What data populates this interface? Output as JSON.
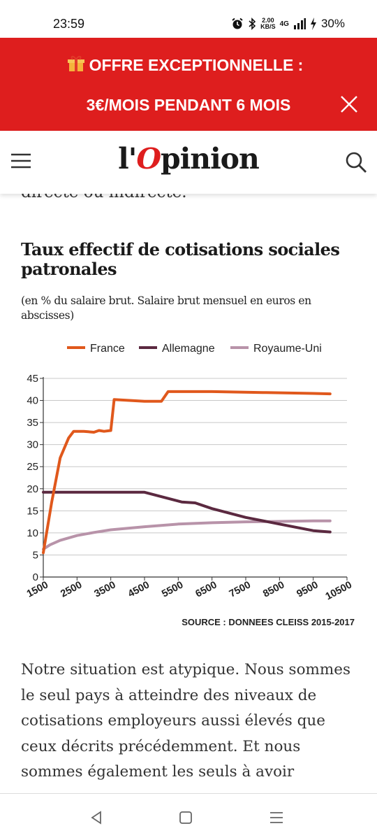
{
  "status_bar": {
    "time": "23:59",
    "network_speed_top": "2.00",
    "network_speed_bottom": "KB/S",
    "network_type": "4G",
    "battery": "30%"
  },
  "banner": {
    "gift_icon": "gift-icon",
    "line1": "OFFRE EXCEPTIONNELLE :",
    "line2": "3€/MOIS PENDANT 6 MOIS",
    "close_icon": "close-icon"
  },
  "header": {
    "logo_prefix": "l'",
    "logo_accent": "O",
    "logo_suffix": "pinion",
    "menu_icon": "hamburger-menu-icon",
    "search_icon": "search-icon"
  },
  "article": {
    "cut_text": "directe ou indirecte.",
    "paragraph": "Notre situation est atypique. Nous sommes le seul pays à atteindre des niveaux de cotisations employeurs aussi élevés que ceux décrits précédemment. Et nous sommes également les seuls à avoir"
  },
  "chart_data": {
    "type": "line",
    "title": "Taux effectif de cotisations sociales patronales",
    "subtitle": "(en % du salaire brut. Salaire brut mensuel en euros en abscisses)",
    "source": "SOURCE : DONNEES CLEISS 2015-2017",
    "xlim": [
      1500,
      10500
    ],
    "ylim": [
      0,
      45
    ],
    "x_ticks": [
      "1500",
      "2500",
      "3500",
      "4500",
      "5500",
      "6500",
      "7500",
      "8500",
      "9500",
      "10500"
    ],
    "y_ticks": [
      "0",
      "5",
      "10",
      "15",
      "20",
      "25",
      "30",
      "35",
      "40",
      "45"
    ],
    "grid": true,
    "legend_position": "top",
    "series": [
      {
        "name": "France",
        "color": "#e0581c",
        "points": [
          [
            1500,
            5.5
          ],
          [
            1750,
            17
          ],
          [
            2000,
            27
          ],
          [
            2250,
            31.5
          ],
          [
            2400,
            33
          ],
          [
            2700,
            33
          ],
          [
            3000,
            32.8
          ],
          [
            3150,
            33.2
          ],
          [
            3300,
            33
          ],
          [
            3500,
            33.2
          ],
          [
            3600,
            40.2
          ],
          [
            4500,
            39.8
          ],
          [
            5000,
            39.8
          ],
          [
            5200,
            42
          ],
          [
            6500,
            42
          ],
          [
            8000,
            41.8
          ],
          [
            9500,
            41.6
          ],
          [
            10000,
            41.5
          ]
        ]
      },
      {
        "name": "Allemagne",
        "color": "#5b2940",
        "points": [
          [
            1500,
            19.2
          ],
          [
            2500,
            19.2
          ],
          [
            4500,
            19.2
          ],
          [
            5600,
            17
          ],
          [
            6000,
            16.8
          ],
          [
            6500,
            15.5
          ],
          [
            7500,
            13.5
          ],
          [
            8500,
            12
          ],
          [
            9500,
            10.5
          ],
          [
            10000,
            10.2
          ]
        ]
      },
      {
        "name": "Royaume-Uni",
        "color": "#b893a9",
        "points": [
          [
            1500,
            6.3
          ],
          [
            1700,
            7.3
          ],
          [
            2000,
            8.3
          ],
          [
            2500,
            9.4
          ],
          [
            3000,
            10.1
          ],
          [
            3500,
            10.7
          ],
          [
            4500,
            11.4
          ],
          [
            5500,
            12
          ],
          [
            6500,
            12.3
          ],
          [
            7500,
            12.5
          ],
          [
            8500,
            12.6
          ],
          [
            9500,
            12.7
          ],
          [
            10000,
            12.7
          ]
        ]
      }
    ]
  },
  "nav_bar": {
    "back_icon": "back-triangle-icon",
    "home_icon": "home-square-icon",
    "recents_icon": "recents-menu-icon"
  }
}
